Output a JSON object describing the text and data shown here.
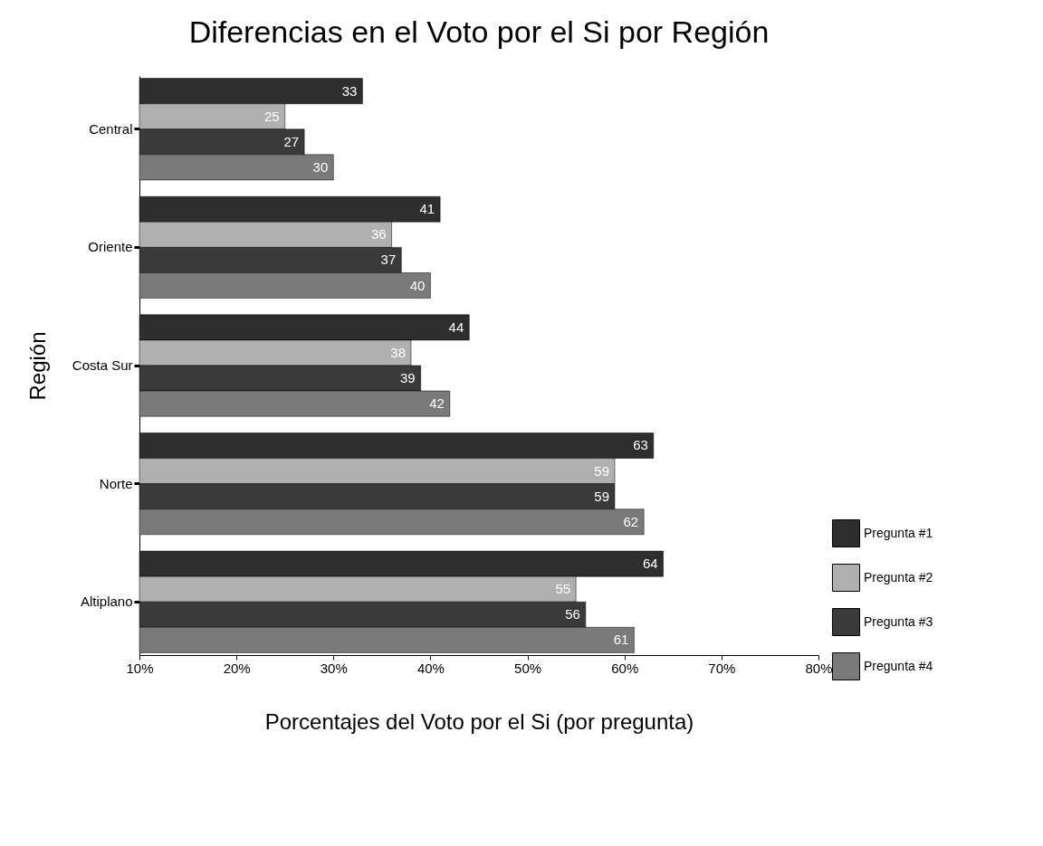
{
  "chart_data": {
    "type": "bar",
    "orientation": "horizontal",
    "title": "Diferencias en el Voto por el Si por Región",
    "xlabel": "Porcentajes del Voto por el Si (por pregunta)",
    "ylabel": "Región",
    "categories": [
      "Central",
      "Oriente",
      "Costa Sur",
      "Norte",
      "Altiplano"
    ],
    "series": [
      {
        "name": "Pregunta #1",
        "color": "#2e2e2e",
        "values": [
          33,
          41,
          44,
          63,
          64
        ]
      },
      {
        "name": "Pregunta #2",
        "color": "#b0b0b0",
        "values": [
          25,
          36,
          38,
          59,
          55
        ]
      },
      {
        "name": "Pregunta #3",
        "color": "#3a3a3a",
        "values": [
          27,
          37,
          39,
          59,
          56
        ]
      },
      {
        "name": "Pregunta #4",
        "color": "#7a7a7a",
        "values": [
          30,
          40,
          42,
          62,
          61
        ]
      }
    ],
    "xlim": [
      10,
      80
    ],
    "xticks": [
      {
        "value": 10,
        "label": "10%"
      },
      {
        "value": 20,
        "label": "20%"
      },
      {
        "value": 30,
        "label": "30%"
      },
      {
        "value": 40,
        "label": "40%"
      },
      {
        "value": 50,
        "label": "50%"
      },
      {
        "value": 60,
        "label": "60%"
      },
      {
        "value": 70,
        "label": "70%"
      },
      {
        "value": 80,
        "label": "80%"
      }
    ],
    "data_labels": true,
    "legend": "bottom right",
    "grid": false
  }
}
